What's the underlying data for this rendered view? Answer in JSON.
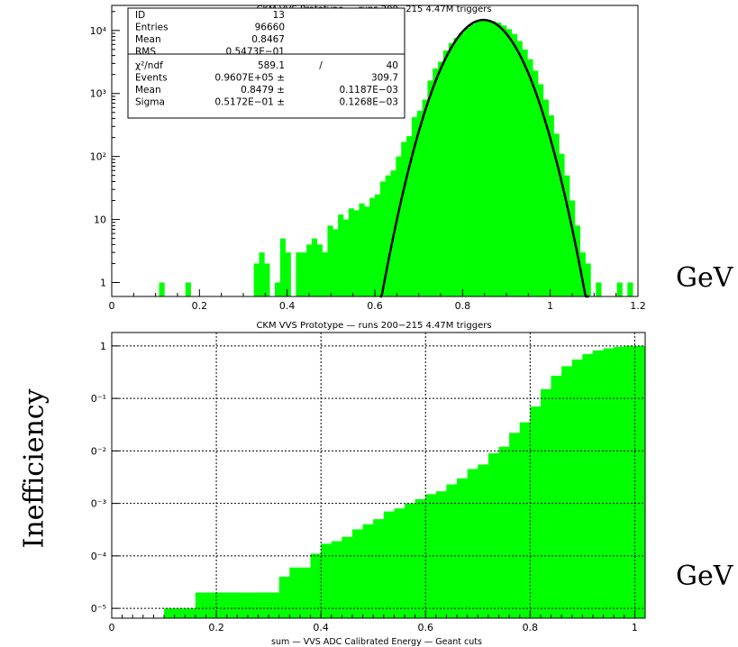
{
  "labels": {
    "side_y_label": "Inefficiency",
    "gev_top": "GeV",
    "gev_bottom": "GeV"
  },
  "chart_data": [
    {
      "type": "bar",
      "scale": "log",
      "title": "CKM VVS Prototype — runs 200−215  4.47M triggers",
      "xlim": [
        0,
        1.2
      ],
      "ylim": [
        0.6,
        25000
      ],
      "x_ticks": [
        {
          "v": 0,
          "label": "0"
        },
        {
          "v": 0.2,
          "label": "0.2"
        },
        {
          "v": 0.4,
          "label": "0.4"
        },
        {
          "v": 0.6,
          "label": "0.6"
        },
        {
          "v": 0.8,
          "label": "0.8"
        },
        {
          "v": 1.0,
          "label": "1"
        },
        {
          "v": 1.2,
          "label": "1.2"
        }
      ],
      "y_ticks": [
        {
          "v": 1,
          "label": "1"
        },
        {
          "v": 10,
          "label": "10"
        },
        {
          "v": 100,
          "label": "10²"
        },
        {
          "v": 1000,
          "label": "10³"
        },
        {
          "v": 10000,
          "label": "10⁴"
        }
      ],
      "bar_color": "#00ff00",
      "bin_width": 0.012,
      "bins_x": [
        0.108,
        0.168,
        0.324,
        0.336,
        0.348,
        0.372,
        0.384,
        0.396,
        0.42,
        0.432,
        0.444,
        0.456,
        0.468,
        0.48,
        0.492,
        0.504,
        0.516,
        0.528,
        0.54,
        0.552,
        0.564,
        0.576,
        0.588,
        0.6,
        0.612,
        0.624,
        0.636,
        0.648,
        0.66,
        0.672,
        0.684,
        0.696,
        0.708,
        0.72,
        0.732,
        0.744,
        0.756,
        0.768,
        0.78,
        0.792,
        0.804,
        0.816,
        0.828,
        0.84,
        0.852,
        0.864,
        0.876,
        0.888,
        0.9,
        0.912,
        0.924,
        0.936,
        0.948,
        0.96,
        0.972,
        0.984,
        0.996,
        1.008,
        1.02,
        1.032,
        1.044,
        1.056,
        1.068,
        1.08,
        1.104,
        1.152,
        1.176
      ],
      "bins_y": [
        1,
        1,
        2,
        3,
        2,
        1,
        5,
        3,
        3,
        3,
        4,
        5,
        4,
        3,
        8,
        7,
        12,
        10,
        15,
        14,
        18,
        16,
        22,
        25,
        40,
        50,
        60,
        100,
        170,
        210,
        420,
        530,
        800,
        1600,
        2500,
        3200,
        4800,
        6300,
        7600,
        9200,
        11000,
        12500,
        13800,
        14500,
        14500,
        14000,
        13300,
        12000,
        10500,
        8800,
        6800,
        5000,
        3500,
        2300,
        1400,
        800,
        450,
        230,
        110,
        50,
        20,
        8,
        3,
        2,
        1,
        1,
        1
      ],
      "fit": {
        "norm": 14700,
        "mean": 0.8479,
        "sigma": 0.05172,
        "x_from": 0.612,
        "x_to": 1.088
      },
      "stats": [
        {
          "name": "ID",
          "value": "13"
        },
        {
          "name": "Entries",
          "value": "96660"
        },
        {
          "name": "Mean",
          "value": "0.8467"
        },
        {
          "name": "RMS",
          "value": "0.5473E−01"
        },
        {
          "name": "χ²/ndf",
          "value": "589.1",
          "value2": "/",
          "value3": "40"
        },
        {
          "name": "Events",
          "value": "0.9607E+05 ±",
          "value3": "309.7"
        },
        {
          "name": "Mean",
          "value": "0.8479 ±",
          "value3": "0.1187E−03"
        },
        {
          "name": "Sigma",
          "value": "0.5172E−01 ±",
          "value3": "0.1268E−03"
        }
      ]
    },
    {
      "type": "bar",
      "scale": "log",
      "title": "CKM VVS Prototype — runs 200−215  4.47M triggers",
      "xlabel": "sum — VVS ADC Calibrated Energy — Geant cuts",
      "xlim": [
        0,
        1.02
      ],
      "ylim": [
        6.5e-06,
        1.8
      ],
      "grid": true,
      "x_ticks": [
        {
          "v": 0,
          "label": "0"
        },
        {
          "v": 0.2,
          "label": "0.2"
        },
        {
          "v": 0.4,
          "label": "0.4"
        },
        {
          "v": 0.6,
          "label": "0.6"
        },
        {
          "v": 0.8,
          "label": "0.8"
        },
        {
          "v": 1.0,
          "label": "1"
        }
      ],
      "y_ticks": [
        {
          "v": 1e-05,
          "label": "0⁻⁵"
        },
        {
          "v": 0.0001,
          "label": "0⁻⁴"
        },
        {
          "v": 0.001,
          "label": "0⁻³"
        },
        {
          "v": 0.01,
          "label": "0⁻²"
        },
        {
          "v": 0.1,
          "label": "0⁻¹"
        },
        {
          "v": 1,
          "label": "1"
        }
      ],
      "bar_color": "#00ff00",
      "steps_x": [
        0.1,
        0.16,
        0.32,
        0.34,
        0.38,
        0.4,
        0.42,
        0.44,
        0.46,
        0.48,
        0.5,
        0.52,
        0.54,
        0.56,
        0.58,
        0.6,
        0.62,
        0.64,
        0.66,
        0.68,
        0.7,
        0.72,
        0.74,
        0.76,
        0.78,
        0.8,
        0.82,
        0.84,
        0.86,
        0.88,
        0.9,
        0.92,
        0.94,
        0.96,
        0.98
      ],
      "steps_y": [
        1e-05,
        2e-05,
        4e-05,
        6e-05,
        0.00011,
        0.00017,
        0.00019,
        0.00023,
        0.00032,
        0.0004,
        0.0005,
        0.0007,
        0.0008,
        0.001,
        0.0012,
        0.0015,
        0.0017,
        0.0023,
        0.003,
        0.0045,
        0.0055,
        0.009,
        0.012,
        0.022,
        0.035,
        0.07,
        0.15,
        0.27,
        0.41,
        0.55,
        0.7,
        0.82,
        0.9,
        0.96,
        1.0
      ],
      "x_end": 1.02
    }
  ]
}
